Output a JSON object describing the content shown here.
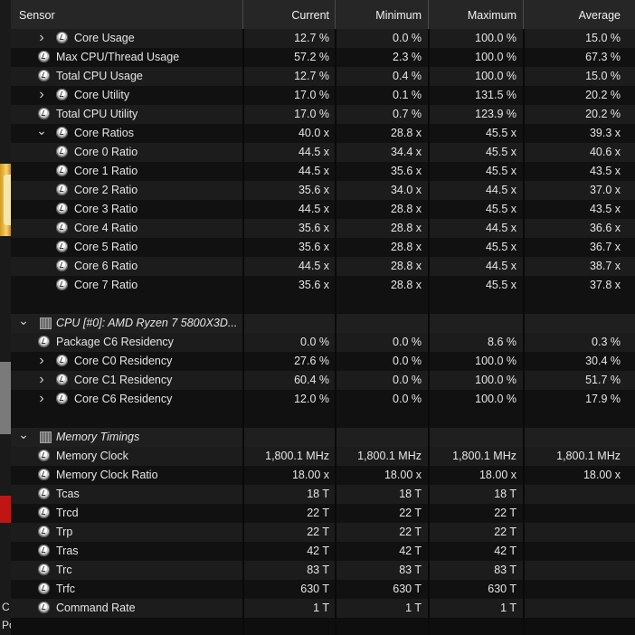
{
  "background": {
    "left_texts": [
      "C",
      "Po"
    ]
  },
  "columns": [
    "Sensor",
    "Current",
    "Minimum",
    "Maximum",
    "Average"
  ],
  "rows": [
    {
      "type": "item",
      "indent": 1,
      "expander": "collapsed",
      "label": "Core Usage",
      "current": "12.7 %",
      "minimum": "0.0 %",
      "maximum": "100.0 %",
      "average": "15.0 %"
    },
    {
      "type": "item",
      "indent": 0,
      "expander": "none",
      "label": "Max CPU/Thread Usage",
      "current": "57.2 %",
      "minimum": "2.3 %",
      "maximum": "100.0 %",
      "average": "67.3 %"
    },
    {
      "type": "item",
      "indent": 0,
      "expander": "none",
      "label": "Total CPU Usage",
      "current": "12.7 %",
      "minimum": "0.4 %",
      "maximum": "100.0 %",
      "average": "15.0 %"
    },
    {
      "type": "item",
      "indent": 1,
      "expander": "collapsed",
      "label": "Core Utility",
      "current": "17.0 %",
      "minimum": "0.1 %",
      "maximum": "131.5 %",
      "average": "20.2 %"
    },
    {
      "type": "item",
      "indent": 0,
      "expander": "none",
      "label": "Total CPU Utility",
      "current": "17.0 %",
      "minimum": "0.7 %",
      "maximum": "123.9 %",
      "average": "20.2 %"
    },
    {
      "type": "item",
      "indent": 1,
      "expander": "expanded",
      "label": "Core Ratios",
      "current": "40.0 x",
      "minimum": "28.8 x",
      "maximum": "45.5 x",
      "average": "39.3 x"
    },
    {
      "type": "item",
      "indent": 1,
      "expander": "none",
      "label": "Core 0 Ratio",
      "current": "44.5 x",
      "minimum": "34.4 x",
      "maximum": "45.5 x",
      "average": "40.6 x"
    },
    {
      "type": "item",
      "indent": 1,
      "expander": "none",
      "label": "Core 1 Ratio",
      "current": "44.5 x",
      "minimum": "35.6 x",
      "maximum": "45.5 x",
      "average": "43.5 x"
    },
    {
      "type": "item",
      "indent": 1,
      "expander": "none",
      "label": "Core 2 Ratio",
      "current": "35.6 x",
      "minimum": "34.0 x",
      "maximum": "44.5 x",
      "average": "37.0 x"
    },
    {
      "type": "item",
      "indent": 1,
      "expander": "none",
      "label": "Core 3 Ratio",
      "current": "44.5 x",
      "minimum": "28.8 x",
      "maximum": "45.5 x",
      "average": "43.5 x"
    },
    {
      "type": "item",
      "indent": 1,
      "expander": "none",
      "label": "Core 4 Ratio",
      "current": "35.6 x",
      "minimum": "28.8 x",
      "maximum": "44.5 x",
      "average": "36.6 x"
    },
    {
      "type": "item",
      "indent": 1,
      "expander": "none",
      "label": "Core 5 Ratio",
      "current": "35.6 x",
      "minimum": "28.8 x",
      "maximum": "45.5 x",
      "average": "36.7 x"
    },
    {
      "type": "item",
      "indent": 1,
      "expander": "none",
      "label": "Core 6 Ratio",
      "current": "44.5 x",
      "minimum": "28.8 x",
      "maximum": "44.5 x",
      "average": "38.7 x"
    },
    {
      "type": "item",
      "indent": 1,
      "expander": "none",
      "label": "Core 7 Ratio",
      "current": "35.6 x",
      "minimum": "28.8 x",
      "maximum": "45.5 x",
      "average": "37.8 x"
    },
    {
      "type": "spacer"
    },
    {
      "type": "group",
      "label": "CPU [#0]: AMD Ryzen 7 5800X3D..."
    },
    {
      "type": "item",
      "indent": 0,
      "expander": "none",
      "label": "Package C6 Residency",
      "current": "0.0 %",
      "minimum": "0.0 %",
      "maximum": "8.6 %",
      "average": "0.3 %"
    },
    {
      "type": "item",
      "indent": 1,
      "expander": "collapsed",
      "label": "Core C0 Residency",
      "current": "27.6 %",
      "minimum": "0.0 %",
      "maximum": "100.0 %",
      "average": "30.4 %"
    },
    {
      "type": "item",
      "indent": 1,
      "expander": "collapsed",
      "label": "Core C1 Residency",
      "current": "60.4 %",
      "minimum": "0.0 %",
      "maximum": "100.0 %",
      "average": "51.7 %"
    },
    {
      "type": "item",
      "indent": 1,
      "expander": "collapsed",
      "label": "Core C6 Residency",
      "current": "12.0 %",
      "minimum": "0.0 %",
      "maximum": "100.0 %",
      "average": "17.9 %"
    },
    {
      "type": "spacer"
    },
    {
      "type": "group",
      "label": "Memory Timings"
    },
    {
      "type": "item",
      "indent": 0,
      "expander": "none",
      "label": "Memory Clock",
      "current": "1,800.1 MHz",
      "minimum": "1,800.1 MHz",
      "maximum": "1,800.1 MHz",
      "average": "1,800.1 MHz"
    },
    {
      "type": "item",
      "indent": 0,
      "expander": "none",
      "label": "Memory Clock Ratio",
      "current": "18.00 x",
      "minimum": "18.00 x",
      "maximum": "18.00 x",
      "average": "18.00 x"
    },
    {
      "type": "item",
      "indent": 0,
      "expander": "none",
      "label": "Tcas",
      "current": "18 T",
      "minimum": "18 T",
      "maximum": "18 T",
      "average": ""
    },
    {
      "type": "item",
      "indent": 0,
      "expander": "none",
      "label": "Trcd",
      "current": "22 T",
      "minimum": "22 T",
      "maximum": "22 T",
      "average": ""
    },
    {
      "type": "item",
      "indent": 0,
      "expander": "none",
      "label": "Trp",
      "current": "22 T",
      "minimum": "22 T",
      "maximum": "22 T",
      "average": ""
    },
    {
      "type": "item",
      "indent": 0,
      "expander": "none",
      "label": "Tras",
      "current": "42 T",
      "minimum": "42 T",
      "maximum": "42 T",
      "average": ""
    },
    {
      "type": "item",
      "indent": 0,
      "expander": "none",
      "label": "Trc",
      "current": "83 T",
      "minimum": "83 T",
      "maximum": "83 T",
      "average": ""
    },
    {
      "type": "item",
      "indent": 0,
      "expander": "none",
      "label": "Trfc",
      "current": "630 T",
      "minimum": "630 T",
      "maximum": "630 T",
      "average": ""
    },
    {
      "type": "item",
      "indent": 0,
      "expander": "none",
      "label": "Command Rate",
      "current": "1 T",
      "minimum": "1 T",
      "maximum": "1 T",
      "average": ""
    }
  ]
}
